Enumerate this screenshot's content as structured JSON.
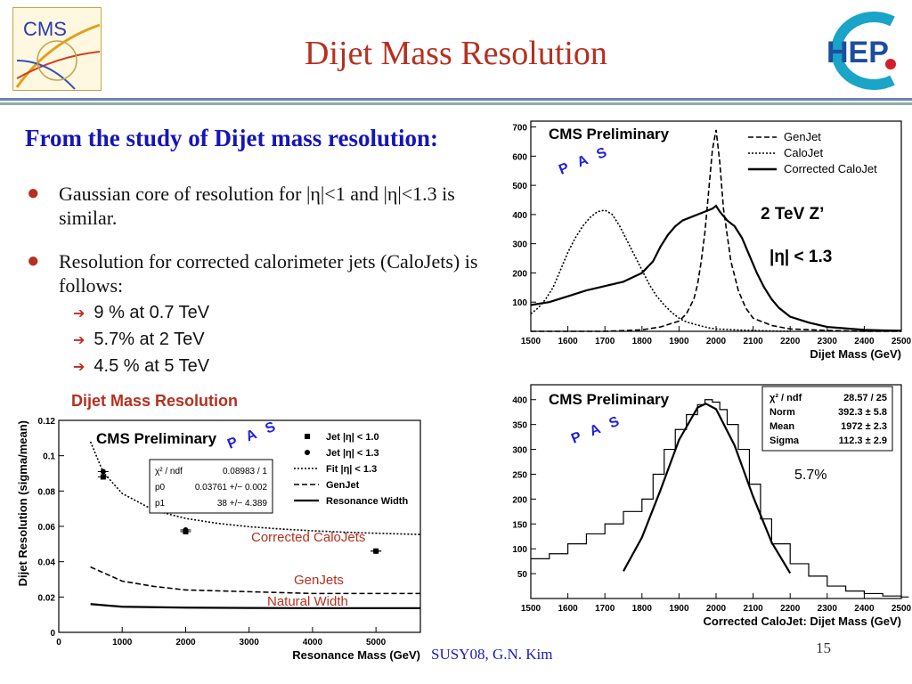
{
  "slide": {
    "title": "Dijet Mass Resolution",
    "subtitle": "From the study of Dijet mass resolution:",
    "cms_logo_text": "CMS",
    "hep_logo_text": "HEP",
    "bullets": [
      {
        "text": "Gaussian core of resolution for |η|<1 and |η|<1.3 is similar."
      },
      {
        "text": "Resolution for corrected calorimeter jets (CaloJets) is follows:"
      }
    ],
    "sub_bullets": [
      "9 % at 0.7 TeV",
      "5.7% at  2 TeV",
      "4.5 % at 5 TeV"
    ],
    "left_chart_label": "Dijet Mass Resolution",
    "footer": {
      "center": "SUSY08, G.N. Kim",
      "page": "15"
    },
    "colors": {
      "title": "#b5301f",
      "subtitle": "#1515b8",
      "accent": "#b5301f",
      "footer": "#1a1ac0"
    }
  },
  "chart_data": [
    {
      "type": "line",
      "panel": "top-right",
      "title": "CMS Preliminary",
      "stamp": "P A S",
      "xlabel": "Dijet Mass (GeV)",
      "ylabel": "",
      "xlim": [
        1500,
        2500
      ],
      "ylim": [
        0,
        720
      ],
      "xticks": [
        1500,
        1600,
        1700,
        1800,
        1900,
        2000,
        2100,
        2200,
        2300,
        2400,
        2500
      ],
      "yticks": [
        100,
        200,
        300,
        400,
        500,
        600,
        700
      ],
      "annotations": [
        "2 TeV Z’",
        "|η| < 1.3"
      ],
      "legend_position": "top-right",
      "series": [
        {
          "name": "GenJet",
          "style": "dashed",
          "x": [
            1500,
            1600,
            1700,
            1800,
            1850,
            1900,
            1920,
            1940,
            1950,
            1960,
            1970,
            1980,
            1990,
            2000,
            2010,
            2020,
            2040,
            2060,
            2080,
            2100,
            2150,
            2200,
            2300,
            2400,
            2500
          ],
          "values": [
            0,
            0,
            0,
            5,
            15,
            35,
            60,
            110,
            160,
            240,
            340,
            480,
            620,
            690,
            580,
            420,
            240,
            140,
            80,
            45,
            20,
            8,
            3,
            0,
            0
          ]
        },
        {
          "name": "CaloJet",
          "style": "dotted",
          "x": [
            1500,
            1520,
            1540,
            1560,
            1580,
            1600,
            1620,
            1640,
            1660,
            1680,
            1700,
            1720,
            1740,
            1760,
            1780,
            1800,
            1820,
            1840,
            1860,
            1880,
            1900,
            1920,
            1940,
            1960,
            1980,
            2000,
            2050,
            2100,
            2150,
            2200
          ],
          "values": [
            60,
            80,
            110,
            150,
            210,
            270,
            320,
            360,
            390,
            410,
            415,
            400,
            360,
            310,
            260,
            210,
            160,
            120,
            90,
            65,
            45,
            32,
            25,
            18,
            12,
            8,
            5,
            3,
            1,
            0
          ]
        },
        {
          "name": "Corrected CaloJet",
          "style": "solid",
          "x": [
            1500,
            1550,
            1600,
            1650,
            1700,
            1750,
            1800,
            1830,
            1850,
            1870,
            1890,
            1910,
            1930,
            1950,
            1970,
            1990,
            2000,
            2010,
            2030,
            2050,
            2070,
            2090,
            2110,
            2130,
            2150,
            2170,
            2200,
            2250,
            2300,
            2350,
            2400,
            2450,
            2500
          ],
          "values": [
            90,
            100,
            120,
            140,
            155,
            170,
            200,
            240,
            290,
            330,
            360,
            380,
            390,
            400,
            410,
            420,
            430,
            410,
            380,
            360,
            320,
            260,
            200,
            150,
            110,
            80,
            50,
            30,
            15,
            10,
            5,
            3,
            2
          ]
        }
      ]
    },
    {
      "type": "line",
      "panel": "bottom-left",
      "title": "CMS Preliminary",
      "stamp": "P A S",
      "xlabel": "Resonance Mass (GeV)",
      "ylabel": "Dijet Resolution (sigma/mean)",
      "xlim": [
        0,
        5700
      ],
      "ylim": [
        0,
        0.12
      ],
      "xticks": [
        0,
        1000,
        2000,
        3000,
        4000,
        5000
      ],
      "yticks": [
        0,
        0.02,
        0.04,
        0.06,
        0.08,
        0.1,
        0.12
      ],
      "legend": [
        "Jet |η| < 1.0",
        "Jet |η| < 1.3",
        "Fit |η| < 1.3",
        "GenJet",
        "Resonance Width"
      ],
      "fit_box": {
        "header": "χ² / ndf",
        "header_value": "0.08983 / 1",
        "rows": [
          [
            "p0",
            "0.03761 +/− 0.002"
          ],
          [
            "p1",
            "38 +/− 4.389"
          ]
        ]
      },
      "annotations": [
        "Corrected CaloJets",
        "GenJets",
        "Natural Width"
      ],
      "series": [
        {
          "name": "Jet |η| < 1.0",
          "style": "points",
          "x": [
            700,
            2000,
            5000
          ],
          "values": [
            0.088,
            0.057,
            0.046
          ]
        },
        {
          "name": "Jet |η| < 1.3",
          "style": "points",
          "x": [
            700,
            2000,
            5000
          ],
          "values": [
            0.091,
            0.058,
            0.046
          ]
        },
        {
          "name": "Fit |η| < 1.3",
          "style": "dotted",
          "x": [
            500,
            700,
            1000,
            1500,
            2000,
            2500,
            3000,
            3500,
            4000,
            4500,
            5000,
            5500,
            5700
          ],
          "values": [
            0.1079,
            0.0906,
            0.0786,
            0.0691,
            0.0645,
            0.0617,
            0.0598,
            0.0585,
            0.0575,
            0.0567,
            0.0561,
            0.0556,
            0.0554
          ]
        },
        {
          "name": "GenJet",
          "style": "dashed",
          "x": [
            500,
            1000,
            1500,
            2000,
            3000,
            4000,
            5000,
            5700
          ],
          "values": [
            0.037,
            0.029,
            0.026,
            0.024,
            0.023,
            0.022,
            0.022,
            0.022
          ]
        },
        {
          "name": "Resonance Width",
          "style": "solid",
          "x": [
            500,
            1000,
            2000,
            3000,
            4000,
            5000,
            5700
          ],
          "values": [
            0.016,
            0.0145,
            0.014,
            0.0138,
            0.0137,
            0.0137,
            0.0137
          ]
        }
      ]
    },
    {
      "type": "line",
      "panel": "bottom-right",
      "title": "CMS Preliminary",
      "stamp": "P A S",
      "xlabel": "Corrected CaloJet: Dijet Mass (GeV)",
      "ylabel": "",
      "xlim": [
        1500,
        2500
      ],
      "ylim": [
        0,
        430
      ],
      "xticks": [
        1500,
        1600,
        1700,
        1800,
        1900,
        2000,
        2100,
        2200,
        2300,
        2400,
        2500
      ],
      "yticks": [
        50,
        100,
        150,
        200,
        250,
        300,
        350,
        400
      ],
      "stat_box": [
        [
          "χ² / ndf",
          "28.57 / 25"
        ],
        [
          "Norm",
          "392.3 ± 5.8"
        ],
        [
          "Mean",
          "1972 ± 2.3"
        ],
        [
          "Sigma",
          "112.3 ± 2.9"
        ]
      ],
      "annotations": [
        "5.7%"
      ],
      "series": [
        {
          "name": "Corrected CaloJet",
          "style": "histogram",
          "x": [
            1500,
            1550,
            1600,
            1650,
            1700,
            1750,
            1800,
            1830,
            1860,
            1890,
            1920,
            1950,
            1970,
            1990,
            2010,
            2030,
            2060,
            2090,
            2120,
            2150,
            2200,
            2250,
            2300,
            2350,
            2400,
            2450,
            2500
          ],
          "values": [
            80,
            90,
            110,
            130,
            150,
            175,
            200,
            250,
            300,
            340,
            370,
            390,
            400,
            395,
            380,
            350,
            300,
            230,
            160,
            110,
            70,
            45,
            25,
            15,
            10,
            5,
            3
          ]
        },
        {
          "name": "Gaussian fit",
          "style": "solid",
          "x": [
            1750,
            1800,
            1850,
            1900,
            1950,
            1972,
            2000,
            2050,
            2100,
            2150,
            2200
          ],
          "values": [
            55,
            123,
            218,
            319,
            384,
            392,
            381,
            308,
            205,
            113,
            51
          ]
        }
      ]
    }
  ]
}
